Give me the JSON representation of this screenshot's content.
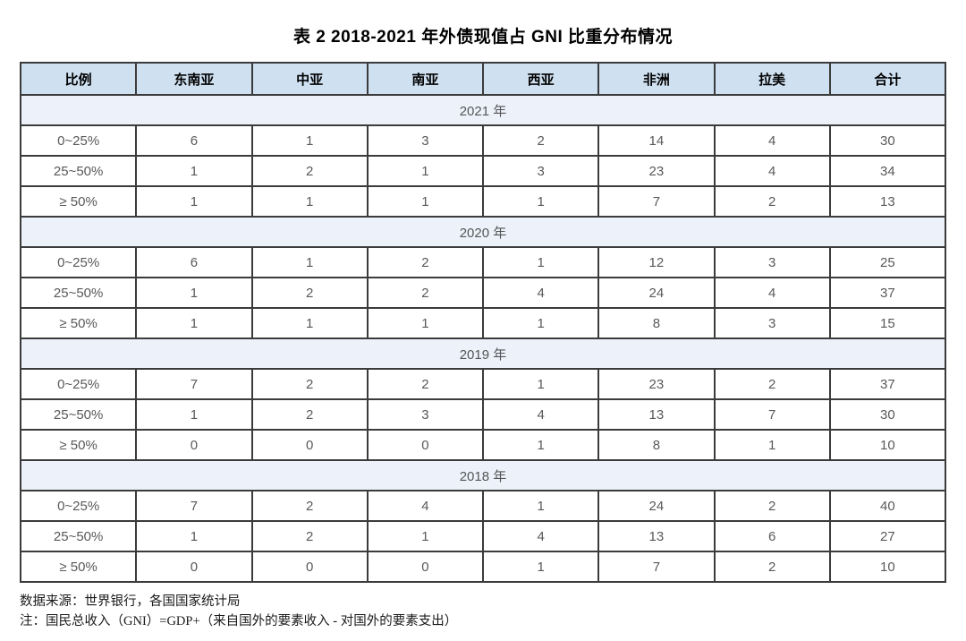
{
  "title": "表 2 2018-2021 年外债现值占 GNI 比重分布情况",
  "table": {
    "columns": [
      "比例",
      "东南亚",
      "中亚",
      "南亚",
      "西亚",
      "非洲",
      "拉美",
      "合计"
    ],
    "sections": [
      {
        "year": "2021 年",
        "rows": [
          {
            "label": "0~25%",
            "values": [
              6,
              1,
              3,
              2,
              14,
              4,
              30
            ]
          },
          {
            "label": "25~50%",
            "values": [
              1,
              2,
              1,
              3,
              23,
              4,
              34
            ]
          },
          {
            "label": "≥ 50%",
            "values": [
              1,
              1,
              1,
              1,
              7,
              2,
              13
            ]
          }
        ]
      },
      {
        "year": "2020 年",
        "rows": [
          {
            "label": "0~25%",
            "values": [
              6,
              1,
              2,
              1,
              12,
              3,
              25
            ]
          },
          {
            "label": "25~50%",
            "values": [
              1,
              2,
              2,
              4,
              24,
              4,
              37
            ]
          },
          {
            "label": "≥ 50%",
            "values": [
              1,
              1,
              1,
              1,
              8,
              3,
              15
            ]
          }
        ]
      },
      {
        "year": "2019 年",
        "rows": [
          {
            "label": "0~25%",
            "values": [
              7,
              2,
              2,
              1,
              23,
              2,
              37
            ]
          },
          {
            "label": "25~50%",
            "values": [
              1,
              2,
              3,
              4,
              13,
              7,
              30
            ]
          },
          {
            "label": "≥ 50%",
            "values": [
              0,
              0,
              0,
              1,
              8,
              1,
              10
            ]
          }
        ]
      },
      {
        "year": "2018 年",
        "rows": [
          {
            "label": "0~25%",
            "values": [
              7,
              2,
              4,
              1,
              24,
              2,
              40
            ]
          },
          {
            "label": "25~50%",
            "values": [
              1,
              2,
              1,
              4,
              13,
              6,
              27
            ]
          },
          {
            "label": "≥ 50%",
            "values": [
              0,
              0,
              0,
              1,
              7,
              2,
              10
            ]
          }
        ]
      }
    ]
  },
  "notes": {
    "source": "数据来源：世界银行，各国国家统计局",
    "definition": "注：国民总收入（GNI）=GDP+（来自国外的要素收入 - 对国外的要素支出）"
  },
  "colors": {
    "header_bg": "#cfe0f1",
    "year_band_bg": "#edf2fa",
    "border": "#3b3b3b",
    "data_text": "#595959",
    "header_text": "#000000"
  },
  "chart_data": {
    "type": "table",
    "title": "表 2 2018-2021 年外债现值占 GNI 比重分布情况",
    "columns": [
      "比例",
      "东南亚",
      "中亚",
      "南亚",
      "西亚",
      "非洲",
      "拉美",
      "合计"
    ],
    "sections": [
      {
        "year": "2021 年",
        "rows": [
          [
            "0~25%",
            6,
            1,
            3,
            2,
            14,
            4,
            30
          ],
          [
            "25~50%",
            1,
            2,
            1,
            3,
            23,
            4,
            34
          ],
          [
            "≥ 50%",
            1,
            1,
            1,
            1,
            7,
            2,
            13
          ]
        ]
      },
      {
        "year": "2020 年",
        "rows": [
          [
            "0~25%",
            6,
            1,
            2,
            1,
            12,
            3,
            25
          ],
          [
            "25~50%",
            1,
            2,
            2,
            4,
            24,
            4,
            37
          ],
          [
            "≥ 50%",
            1,
            1,
            1,
            1,
            8,
            3,
            15
          ]
        ]
      },
      {
        "year": "2019 年",
        "rows": [
          [
            "0~25%",
            7,
            2,
            2,
            1,
            23,
            2,
            37
          ],
          [
            "25~50%",
            1,
            2,
            3,
            4,
            13,
            7,
            30
          ],
          [
            "≥ 50%",
            0,
            0,
            0,
            1,
            8,
            1,
            10
          ]
        ]
      },
      {
        "year": "2018 年",
        "rows": [
          [
            "0~25%",
            7,
            2,
            4,
            1,
            24,
            2,
            40
          ],
          [
            "25~50%",
            1,
            2,
            1,
            4,
            13,
            6,
            27
          ],
          [
            "≥ 50%",
            0,
            0,
            0,
            1,
            7,
            2,
            10
          ]
        ]
      }
    ]
  }
}
